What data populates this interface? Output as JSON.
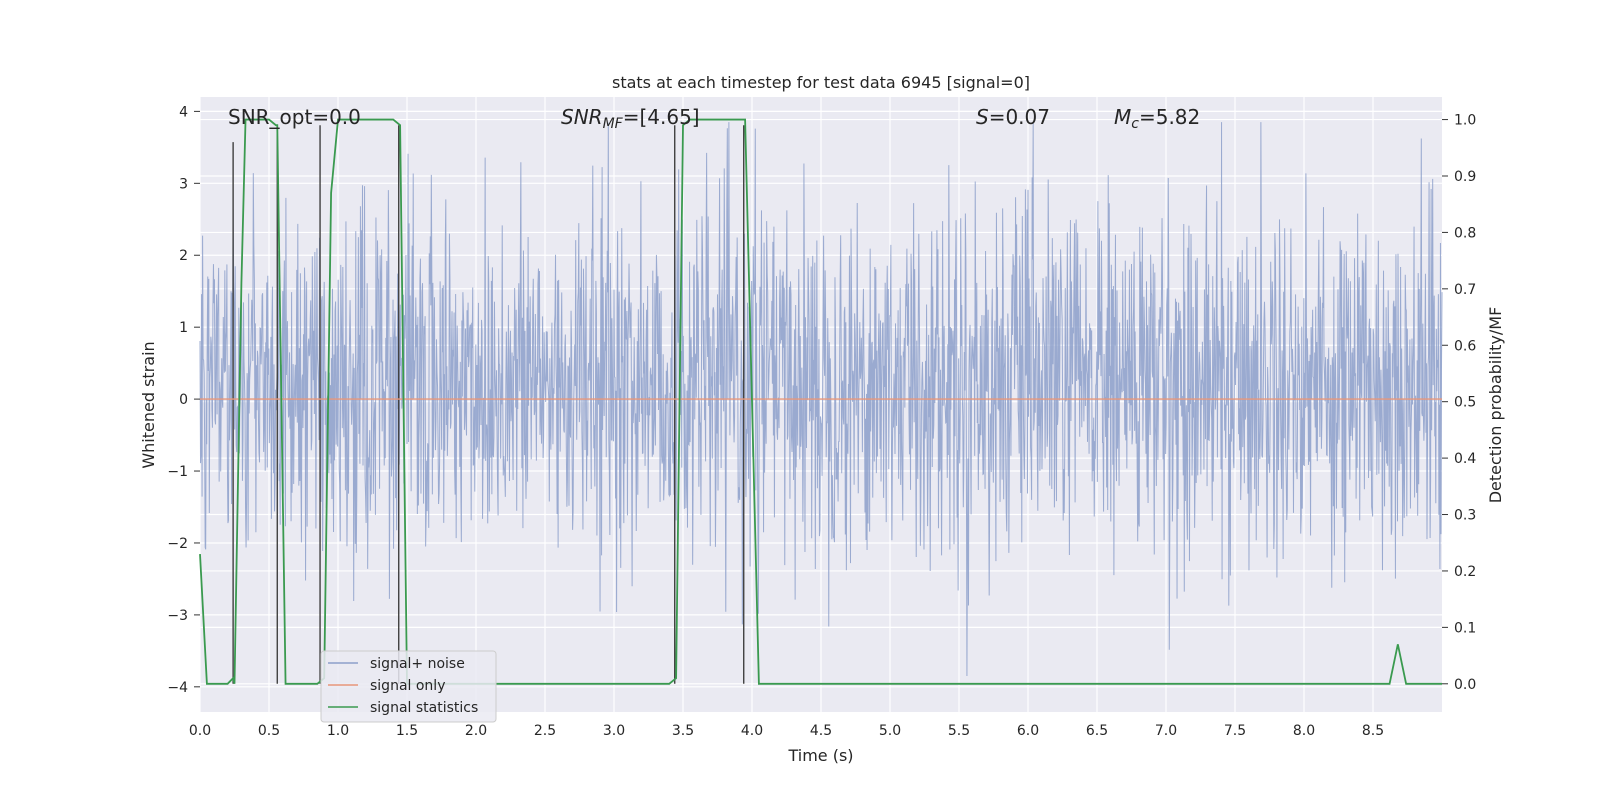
{
  "chart_data": {
    "type": "line",
    "title": "stats at each timestep for test data 6945 [signal=0]",
    "xlabel": "Time (s)",
    "ylabel_left": "Whitened strain",
    "ylabel_right": "Detection probability/MF",
    "xlim": [
      0.0,
      9.0
    ],
    "ylim_left": [
      -4.35,
      4.2
    ],
    "ylim_right": [
      -0.05,
      1.04
    ],
    "grid": true,
    "legend_placement": "lower-left",
    "x_ticks": [
      "0.0",
      "0.5",
      "1.0",
      "1.5",
      "2.0",
      "2.5",
      "3.0",
      "3.5",
      "4.0",
      "4.5",
      "5.0",
      "5.5",
      "6.0",
      "6.5",
      "7.0",
      "7.5",
      "8.0",
      "8.5"
    ],
    "y_left_ticks": [
      "4",
      "3",
      "2",
      "1",
      "0",
      "−1",
      "−2",
      "−3",
      "−4"
    ],
    "y_right_ticks": [
      "1.0",
      "0.9",
      "0.8",
      "0.7",
      "0.6",
      "0.5",
      "0.4",
      "0.3",
      "0.2",
      "0.1",
      "0.0"
    ],
    "annotations": {
      "snr_opt": "SNR_opt=0.0",
      "snr_mf_main": "SNR",
      "snr_mf_sub": "MF",
      "snr_mf_value": "=[4.65]",
      "s_main": "S",
      "s_value": "=0.07",
      "mc_main": "M",
      "mc_sub": "c",
      "mc_value": "=5.82"
    },
    "series": [
      {
        "name": "signal+ noise",
        "color": "#8c9fca",
        "axis": "left",
        "x_range": [
          0.0,
          9.0
        ],
        "envelope_typical": [
          -1.7,
          2.2
        ],
        "peak_range": [
          -3.85,
          3.85
        ]
      },
      {
        "name": "signal only",
        "color": "#e8967a",
        "axis": "left",
        "x": [
          0.0,
          9.0
        ],
        "y": [
          0.0,
          0.0
        ]
      },
      {
        "name": "signal statistics",
        "color": "#3a9a4f",
        "axis": "right",
        "x": [
          0.0,
          0.05,
          0.2,
          0.24,
          0.25,
          0.3,
          0.33,
          0.5,
          0.55,
          0.56,
          0.62,
          0.8,
          0.85,
          0.9,
          0.95,
          1.0,
          1.4,
          1.45,
          1.5,
          2.0,
          3.0,
          3.4,
          3.45,
          3.5,
          3.55,
          3.9,
          3.95,
          4.05,
          4.1,
          5.0,
          6.0,
          7.0,
          8.0,
          8.62,
          8.68,
          8.74,
          8.78,
          9.0
        ],
        "y": [
          0.23,
          0.0,
          0.0,
          0.01,
          0.0,
          0.71,
          1.0,
          1.0,
          0.99,
          0.99,
          0.0,
          0.0,
          0.0,
          0.01,
          0.87,
          1.0,
          1.0,
          0.99,
          0.0,
          0.0,
          0.0,
          0.0,
          0.01,
          0.99,
          1.0,
          1.0,
          1.0,
          0.0,
          0.0,
          0.0,
          0.0,
          0.0,
          0.0,
          0.0,
          0.07,
          0.0,
          0.0,
          0.0
        ]
      }
    ],
    "markers": {
      "color": "#404040",
      "x": [
        0.24,
        0.56,
        0.87,
        1.44,
        3.44,
        3.94
      ],
      "y_right_top": [
        0.96,
        0.99,
        0.99,
        0.99,
        0.99,
        0.99
      ]
    }
  }
}
